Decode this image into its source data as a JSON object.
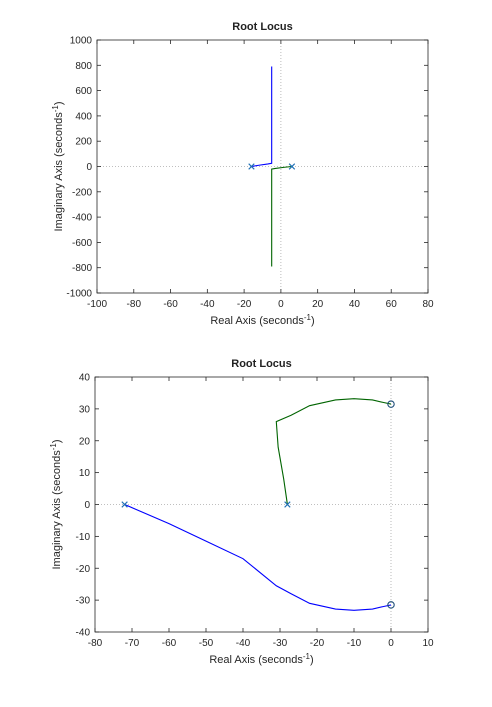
{
  "chart_data": [
    {
      "type": "line",
      "title": "Root Locus",
      "xlabel": "Real Axis (seconds",
      "ylabel": "Imaginary Axis (seconds",
      "label_superscript": "-1",
      "label_suffix": ")",
      "xlim": [
        -100,
        80
      ],
      "ylim": [
        -1000,
        1000
      ],
      "xticks": [
        -100,
        -80,
        -60,
        -40,
        -20,
        0,
        20,
        40,
        60,
        80
      ],
      "yticks": [
        -1000,
        -800,
        -600,
        -400,
        -200,
        0,
        200,
        400,
        600,
        800,
        1000
      ],
      "grid": false,
      "dotted_zero_lines": true,
      "series": [
        {
          "color": "#0000ff",
          "points": [
            [
              -16,
              0
            ],
            [
              -12,
              10
            ],
            [
              -7,
              20
            ],
            [
              -5,
              25
            ],
            [
              -5,
              100
            ],
            [
              -5,
              300
            ],
            [
              -5,
              500
            ],
            [
              -5,
              790
            ]
          ]
        },
        {
          "color": "#006400",
          "points": [
            [
              6,
              0
            ],
            [
              2,
              -6
            ],
            [
              -3,
              -15
            ],
            [
              -5,
              -20
            ],
            [
              -5,
              -100
            ],
            [
              -5,
              -300
            ],
            [
              -5,
              -500
            ],
            [
              -5,
              -790
            ]
          ]
        }
      ],
      "poles": [
        [
          -16,
          0
        ],
        [
          6,
          0
        ]
      ],
      "zeros": []
    },
    {
      "type": "line",
      "title": "Root Locus",
      "xlabel": "Real Axis (seconds",
      "ylabel": "Imaginary Axis (seconds",
      "label_superscript": "-1",
      "label_suffix": ")",
      "xlim": [
        -80,
        10
      ],
      "ylim": [
        -40,
        40
      ],
      "xticks": [
        -80,
        -70,
        -60,
        -50,
        -40,
        -30,
        -20,
        -10,
        0,
        10
      ],
      "yticks": [
        -40,
        -30,
        -20,
        -10,
        0,
        10,
        20,
        30,
        40
      ],
      "grid": false,
      "dotted_zero_lines": true,
      "series": [
        {
          "color": "#0000ff",
          "points": [
            [
              -72,
              0
            ],
            [
              -60,
              -6
            ],
            [
              -50,
              -11.5
            ],
            [
              -40,
              -17
            ],
            [
              -31,
              -25.5
            ],
            [
              -27,
              -28
            ],
            [
              -22,
              -31
            ],
            [
              -15,
              -32.8
            ],
            [
              -10,
              -33.2
            ],
            [
              -5,
              -32.8
            ],
            [
              -2,
              -32
            ],
            [
              0,
              -31.5
            ]
          ]
        },
        {
          "color": "#006400",
          "points": [
            [
              -28,
              0
            ],
            [
              -29,
              8
            ],
            [
              -30.5,
              18
            ],
            [
              -31,
              26
            ],
            [
              -27,
              28
            ],
            [
              -22,
              31
            ],
            [
              -15,
              32.8
            ],
            [
              -10,
              33.2
            ],
            [
              -5,
              32.8
            ],
            [
              -2,
              32
            ],
            [
              0,
              31.5
            ]
          ]
        }
      ],
      "poles": [
        [
          -72,
          0
        ],
        [
          -28,
          0
        ]
      ],
      "zeros": [
        [
          0,
          31.5
        ],
        [
          0,
          -31.5
        ]
      ]
    }
  ]
}
